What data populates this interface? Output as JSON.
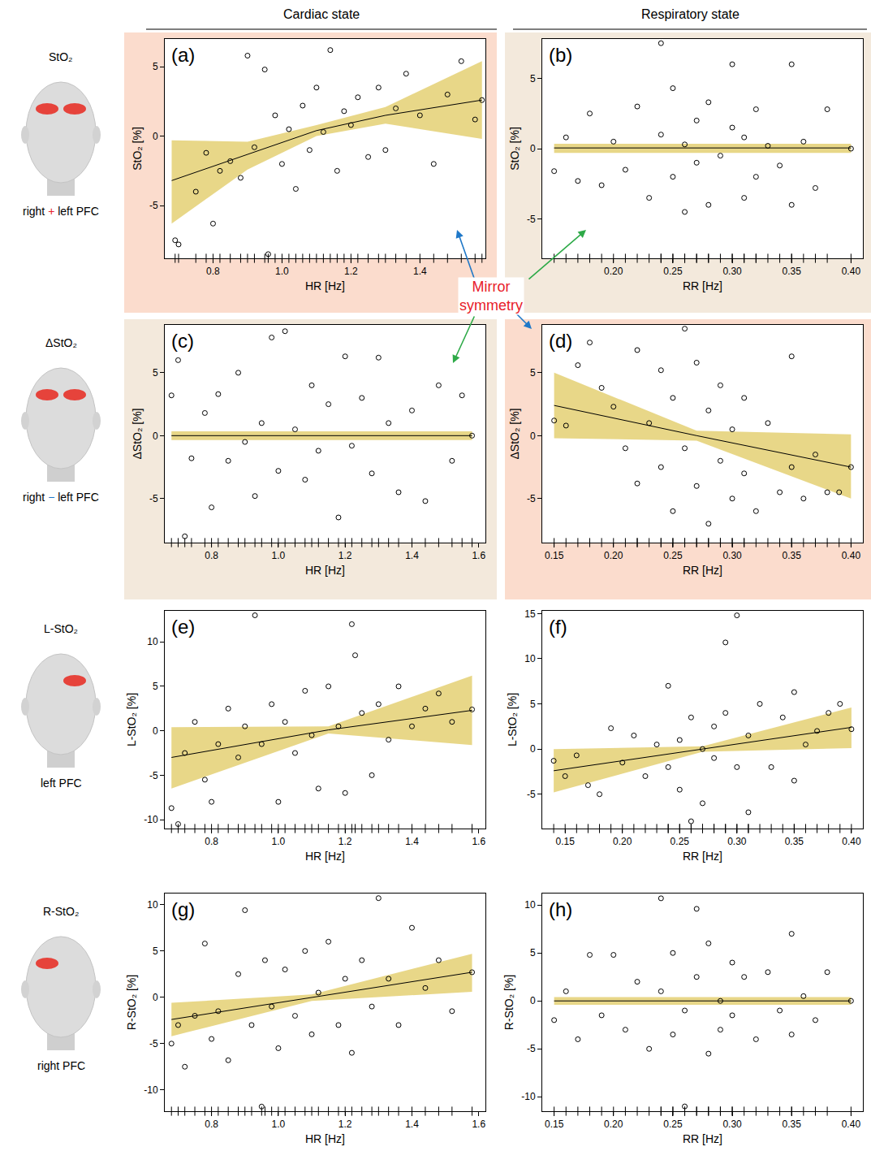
{
  "figure": {
    "columns": [
      "Cardiac state",
      "Respiratory state"
    ],
    "rows": [
      {
        "title": "StO₂",
        "label": "right + left PFC",
        "operator": "+"
      },
      {
        "title": "ΔStO₂",
        "label": "right − left PFC",
        "operator": "−"
      },
      {
        "title": "L-StO₂",
        "label": "left PFC"
      },
      {
        "title": "R-StO₂",
        "label": "right PFC"
      }
    ],
    "annotation": "Mirror symmetry"
  },
  "chart_data": [
    {
      "type": "scatter",
      "letter": "(a)",
      "x_label": "HR [Hz]",
      "y_label": "StO₂ [%]",
      "color": "#000000",
      "marker": "circle-open",
      "grid": false,
      "x": [
        0.69,
        0.7,
        0.75,
        0.78,
        0.8,
        0.82,
        0.85,
        0.88,
        0.9,
        0.92,
        0.95,
        0.96,
        0.98,
        1.0,
        1.02,
        1.04,
        1.06,
        1.08,
        1.1,
        1.12,
        1.14,
        1.16,
        1.18,
        1.2,
        1.22,
        1.25,
        1.28,
        1.3,
        1.33,
        1.36,
        1.4,
        1.44,
        1.48,
        1.52,
        1.56,
        1.58
      ],
      "y": [
        -7.5,
        -7.8,
        -4.0,
        -1.2,
        -6.3,
        -2.5,
        -1.8,
        -3.0,
        5.8,
        -0.8,
        4.8,
        -8.5,
        1.5,
        -2.0,
        0.5,
        -3.8,
        2.2,
        -1.0,
        3.5,
        0.3,
        6.2,
        -2.5,
        1.8,
        0.8,
        2.8,
        -1.5,
        3.5,
        -1.0,
        2.0,
        4.5,
        1.5,
        -2.0,
        3.0,
        5.4,
        1.2,
        2.6
      ],
      "fit": {
        "x": [
          0.68,
          0.9,
          1.1,
          1.3,
          1.58
        ],
        "y": [
          -3.2,
          -1.3,
          0.4,
          1.5,
          2.6
        ]
      },
      "band": {
        "x": [
          0.68,
          0.9,
          1.1,
          1.3,
          1.58
        ],
        "lower": [
          -6.3,
          -2.4,
          0.0,
          0.9,
          -0.2
        ],
        "upper": [
          -0.3,
          -0.4,
          0.8,
          2.1,
          5.4
        ]
      },
      "xlim": [
        0.66,
        1.59
      ],
      "xticks": [
        0.8,
        {
          "value": 1.0,
          "label": "1.0"
        },
        1.2,
        1.4
      ],
      "ylim": [
        -8.8,
        7.0
      ],
      "yticks": [
        -5,
        0,
        5
      ]
    },
    {
      "type": "scatter",
      "letter": "(b)",
      "x_label": "RR [Hz]",
      "y_label": "StO₂ [%]",
      "color": "#000000",
      "marker": "circle-open",
      "grid": false,
      "x": [
        0.15,
        0.16,
        0.17,
        0.18,
        0.19,
        0.2,
        0.21,
        0.22,
        0.23,
        0.24,
        0.24,
        0.25,
        0.25,
        0.26,
        0.26,
        0.27,
        0.27,
        0.28,
        0.28,
        0.29,
        0.3,
        0.3,
        0.31,
        0.31,
        0.32,
        0.32,
        0.33,
        0.34,
        0.35,
        0.35,
        0.36,
        0.37,
        0.38,
        0.4
      ],
      "y": [
        -1.6,
        0.8,
        -2.3,
        2.5,
        -2.6,
        0.5,
        -1.5,
        3.0,
        -3.5,
        7.5,
        1.0,
        -2.0,
        4.3,
        -4.5,
        0.3,
        2.0,
        -1.0,
        -4.0,
        3.3,
        -0.5,
        6.0,
        1.5,
        -3.5,
        0.8,
        -2.0,
        2.8,
        0.2,
        -1.2,
        6.0,
        -4.0,
        0.5,
        -2.8,
        2.8,
        0.0
      ],
      "fit": {
        "x": [
          0.15,
          0.4
        ],
        "y": [
          0.05,
          0.05
        ]
      },
      "band": {
        "x": [
          0.15,
          0.4
        ],
        "lower": [
          -0.3,
          -0.3
        ],
        "upper": [
          0.35,
          0.35
        ]
      },
      "xlim": [
        0.14,
        0.41
      ],
      "xticks": [
        {
          "value": 0.2,
          "label": "0.20"
        },
        {
          "value": 0.25,
          "label": "0.25"
        },
        {
          "value": 0.3,
          "label": "0.30"
        },
        {
          "value": 0.35,
          "label": "0.35"
        },
        {
          "value": 0.4,
          "label": "0.40"
        }
      ],
      "ylim": [
        -7.8,
        7.8
      ],
      "yticks": [
        -5,
        0,
        5
      ]
    },
    {
      "type": "scatter",
      "letter": "(c)",
      "x_label": "HR [Hz]",
      "y_label": "ΔStO₂ [%]",
      "color": "#000000",
      "marker": "circle-open",
      "grid": false,
      "x": [
        0.68,
        0.7,
        0.72,
        0.74,
        0.78,
        0.8,
        0.82,
        0.85,
        0.88,
        0.9,
        0.93,
        0.95,
        0.98,
        1.0,
        1.02,
        1.05,
        1.08,
        1.1,
        1.12,
        1.15,
        1.18,
        1.2,
        1.22,
        1.25,
        1.28,
        1.3,
        1.33,
        1.36,
        1.4,
        1.44,
        1.48,
        1.52,
        1.55,
        1.58
      ],
      "y": [
        3.2,
        6.0,
        -8.0,
        -1.8,
        1.8,
        -5.7,
        3.3,
        -2.0,
        5.0,
        -0.5,
        -4.8,
        1.0,
        7.8,
        -2.8,
        8.3,
        0.5,
        -3.5,
        4.0,
        -1.2,
        2.5,
        -6.5,
        6.3,
        -0.8,
        3.0,
        -3.0,
        6.2,
        1.0,
        -4.5,
        2.0,
        -5.2,
        4.0,
        -2.0,
        3.2,
        0.0
      ],
      "fit": {
        "x": [
          0.68,
          1.58
        ],
        "y": [
          0,
          0
        ]
      },
      "band": {
        "x": [
          0.68,
          1.58
        ],
        "lower": [
          -0.35,
          -0.35
        ],
        "upper": [
          0.35,
          0.35
        ]
      },
      "xlim": [
        0.66,
        1.62
      ],
      "xticks": [
        0.8,
        {
          "value": 1.0,
          "label": "1.0"
        },
        1.2,
        1.4,
        1.6
      ],
      "ylim": [
        -8.5,
        8.8
      ],
      "yticks": [
        -5,
        0,
        5
      ]
    },
    {
      "type": "scatter",
      "letter": "(d)",
      "x_label": "RR [Hz]",
      "y_label": "ΔStO₂ [%]",
      "color": "#000000",
      "marker": "circle-open",
      "grid": false,
      "x": [
        0.15,
        0.16,
        0.17,
        0.18,
        0.19,
        0.2,
        0.21,
        0.22,
        0.22,
        0.23,
        0.24,
        0.24,
        0.25,
        0.25,
        0.26,
        0.26,
        0.27,
        0.27,
        0.28,
        0.28,
        0.29,
        0.29,
        0.3,
        0.3,
        0.31,
        0.31,
        0.32,
        0.33,
        0.34,
        0.35,
        0.35,
        0.36,
        0.37,
        0.38,
        0.39,
        0.4
      ],
      "y": [
        1.2,
        0.8,
        5.6,
        7.4,
        3.8,
        2.3,
        -1.0,
        6.8,
        -3.8,
        1.0,
        -2.5,
        5.2,
        -6.0,
        3.0,
        8.5,
        -1.0,
        5.8,
        -4.0,
        -7.0,
        2.0,
        -2.0,
        4.0,
        -5.0,
        0.5,
        3.0,
        -3.0,
        -6.0,
        1.0,
        -4.5,
        6.3,
        -2.5,
        -5.0,
        -1.5,
        -4.5,
        -4.5,
        -2.5
      ],
      "fit": {
        "x": [
          0.15,
          0.27,
          0.4
        ],
        "y": [
          2.4,
          0.0,
          -2.5
        ]
      },
      "band": {
        "x": [
          0.15,
          0.27,
          0.4
        ],
        "lower": [
          -0.2,
          -0.4,
          -5.0
        ],
        "upper": [
          5.0,
          0.4,
          0.1
        ]
      },
      "xlim": [
        0.14,
        0.41
      ],
      "xticks": [
        {
          "value": 0.15,
          "label": "0.15"
        },
        {
          "value": 0.2,
          "label": "0.20"
        },
        {
          "value": 0.25,
          "label": "0.25"
        },
        {
          "value": 0.3,
          "label": "0.30"
        },
        {
          "value": 0.35,
          "label": "0.35"
        },
        {
          "value": 0.4,
          "label": "0.40"
        }
      ],
      "ylim": [
        -8.5,
        8.8
      ],
      "yticks": [
        -5,
        0,
        5
      ]
    },
    {
      "type": "scatter",
      "letter": "(e)",
      "x_label": "HR [Hz]",
      "y_label": "L-StO₂ [%]",
      "color": "#000000",
      "marker": "circle-open",
      "grid": false,
      "x": [
        0.68,
        0.7,
        0.72,
        0.75,
        0.78,
        0.8,
        0.82,
        0.85,
        0.88,
        0.9,
        0.93,
        0.95,
        0.98,
        1.0,
        1.02,
        1.05,
        1.08,
        1.1,
        1.12,
        1.15,
        1.18,
        1.2,
        1.22,
        1.23,
        1.25,
        1.28,
        1.3,
        1.33,
        1.36,
        1.4,
        1.44,
        1.48,
        1.52,
        1.58
      ],
      "y": [
        -8.7,
        -10.5,
        -2.5,
        1.0,
        -5.5,
        -8.0,
        -1.5,
        2.5,
        -3.0,
        0.5,
        13.0,
        -1.5,
        3.0,
        -8.0,
        1.0,
        -2.5,
        4.5,
        -0.5,
        -6.5,
        5.0,
        0.5,
        -7.0,
        12.0,
        8.5,
        2.0,
        -5.0,
        3.0,
        -1.0,
        5.0,
        0.5,
        2.5,
        4.2,
        1.0,
        2.4
      ],
      "fit": {
        "x": [
          0.68,
          1.15,
          1.58
        ],
        "y": [
          -3.0,
          0.1,
          2.3
        ]
      },
      "band": {
        "x": [
          0.68,
          1.15,
          1.58
        ],
        "lower": [
          -6.5,
          -0.3,
          -1.6
        ],
        "upper": [
          0.4,
          0.5,
          6.2
        ]
      },
      "xlim": [
        0.66,
        1.62
      ],
      "xticks": [
        0.8,
        {
          "value": 1.0,
          "label": "1.0"
        },
        1.2,
        1.4,
        1.6
      ],
      "ylim": [
        -11.0,
        13.5
      ],
      "yticks": [
        -10,
        -5,
        0,
        5,
        10
      ]
    },
    {
      "type": "scatter",
      "letter": "(f)",
      "x_label": "RR [Hz]",
      "y_label": "L-StO₂ [%]",
      "color": "#000000",
      "marker": "circle-open",
      "grid": false,
      "x": [
        0.14,
        0.15,
        0.16,
        0.17,
        0.18,
        0.19,
        0.2,
        0.21,
        0.22,
        0.23,
        0.24,
        0.24,
        0.25,
        0.25,
        0.26,
        0.26,
        0.27,
        0.27,
        0.28,
        0.28,
        0.29,
        0.29,
        0.3,
        0.3,
        0.31,
        0.31,
        0.32,
        0.33,
        0.34,
        0.35,
        0.35,
        0.36,
        0.37,
        0.38,
        0.39,
        0.4
      ],
      "y": [
        -1.3,
        -3.0,
        -0.7,
        -4.0,
        -5.0,
        2.3,
        -1.5,
        1.5,
        -3.0,
        0.5,
        7.0,
        -2.0,
        1.0,
        -4.5,
        3.5,
        -8.0,
        0.0,
        -6.0,
        2.5,
        -1.0,
        11.8,
        4.0,
        14.8,
        -2.0,
        -7.0,
        1.5,
        5.0,
        -2.0,
        3.5,
        6.3,
        -3.5,
        0.5,
        2.0,
        4.0,
        5.0,
        2.2
      ],
      "fit": {
        "x": [
          0.14,
          0.27,
          0.4
        ],
        "y": [
          -2.4,
          0.0,
          2.4
        ]
      },
      "band": {
        "x": [
          0.14,
          0.27,
          0.4
        ],
        "lower": [
          -4.8,
          -0.3,
          0.1
        ],
        "upper": [
          0.0,
          0.3,
          4.6
        ]
      },
      "xlim": [
        0.13,
        0.41
      ],
      "xticks": [
        {
          "value": 0.15,
          "label": "0.15"
        },
        {
          "value": 0.2,
          "label": "0.20"
        },
        {
          "value": 0.25,
          "label": "0.25"
        },
        {
          "value": 0.3,
          "label": "0.30"
        },
        {
          "value": 0.35,
          "label": "0.35"
        },
        {
          "value": 0.4,
          "label": "0.40"
        }
      ],
      "ylim": [
        -8.8,
        15.3
      ],
      "yticks": [
        -5,
        0,
        5,
        10,
        15
      ]
    },
    {
      "type": "scatter",
      "letter": "(g)",
      "x_label": "HR [Hz]",
      "y_label": "R-StO₂ [%]",
      "color": "#000000",
      "marker": "circle-open",
      "grid": false,
      "x": [
        0.68,
        0.7,
        0.72,
        0.75,
        0.78,
        0.8,
        0.82,
        0.85,
        0.88,
        0.9,
        0.92,
        0.95,
        0.96,
        0.98,
        1.0,
        1.02,
        1.05,
        1.08,
        1.1,
        1.12,
        1.15,
        1.18,
        1.2,
        1.22,
        1.25,
        1.28,
        1.3,
        1.33,
        1.36,
        1.4,
        1.44,
        1.48,
        1.52,
        1.58
      ],
      "y": [
        -5.0,
        -3.0,
        -7.5,
        -2.0,
        5.8,
        -4.5,
        -1.5,
        -6.8,
        2.5,
        9.4,
        -3.0,
        -11.8,
        4.0,
        -1.0,
        -5.5,
        3.0,
        -2.0,
        5.0,
        -4.0,
        0.5,
        6.0,
        -3.0,
        2.0,
        -6.0,
        4.0,
        -1.0,
        10.7,
        2.0,
        -3.0,
        7.5,
        1.0,
        4.0,
        -1.5,
        2.7
      ],
      "fit": {
        "x": [
          0.68,
          1.1,
          1.58
        ],
        "y": [
          -2.4,
          -0.05,
          2.7
        ]
      },
      "band": {
        "x": [
          0.68,
          1.1,
          1.58
        ],
        "lower": [
          -4.2,
          -0.4,
          0.6
        ],
        "upper": [
          -0.6,
          0.3,
          4.7
        ]
      },
      "xlim": [
        0.66,
        1.62
      ],
      "xticks": [
        0.8,
        {
          "value": 1.0,
          "label": "1.0"
        },
        1.2,
        1.4,
        1.6
      ],
      "ylim": [
        -12.3,
        11.2
      ],
      "yticks": [
        -10,
        -5,
        0,
        5,
        10
      ]
    },
    {
      "type": "scatter",
      "letter": "(h)",
      "x_label": "RR [Hz]",
      "y_label": "R-StO₂ [%]",
      "color": "#000000",
      "marker": "circle-open",
      "grid": false,
      "x": [
        0.15,
        0.16,
        0.17,
        0.18,
        0.19,
        0.2,
        0.21,
        0.22,
        0.23,
        0.24,
        0.24,
        0.25,
        0.25,
        0.26,
        0.26,
        0.27,
        0.27,
        0.28,
        0.28,
        0.29,
        0.29,
        0.3,
        0.3,
        0.31,
        0.32,
        0.33,
        0.34,
        0.35,
        0.35,
        0.36,
        0.37,
        0.38,
        0.4
      ],
      "y": [
        -2.0,
        1.0,
        -4.0,
        4.8,
        -1.5,
        4.8,
        -3.0,
        2.0,
        -5.0,
        10.7,
        1.0,
        -3.5,
        5.0,
        -11.0,
        -1.0,
        9.6,
        2.5,
        -5.5,
        6.0,
        0.0,
        -3.0,
        4.0,
        -1.5,
        2.5,
        -4.0,
        3.0,
        -1.0,
        7.0,
        -3.5,
        0.5,
        -2.0,
        3.0,
        0.0
      ],
      "fit": {
        "x": [
          0.15,
          0.4
        ],
        "y": [
          0,
          0
        ]
      },
      "band": {
        "x": [
          0.15,
          0.4
        ],
        "lower": [
          -0.4,
          -0.4
        ],
        "upper": [
          0.4,
          0.4
        ]
      },
      "xlim": [
        0.14,
        0.41
      ],
      "xticks": [
        {
          "value": 0.15,
          "label": "0.15"
        },
        {
          "value": 0.2,
          "label": "0.20"
        },
        {
          "value": 0.25,
          "label": "0.25"
        },
        {
          "value": 0.3,
          "label": "0.30"
        },
        {
          "value": 0.35,
          "label": "0.35"
        },
        {
          "value": 0.4,
          "label": "0.40"
        }
      ],
      "ylim": [
        -11.5,
        11.2
      ],
      "yticks": [
        -10,
        -5,
        0,
        5,
        10
      ]
    }
  ]
}
